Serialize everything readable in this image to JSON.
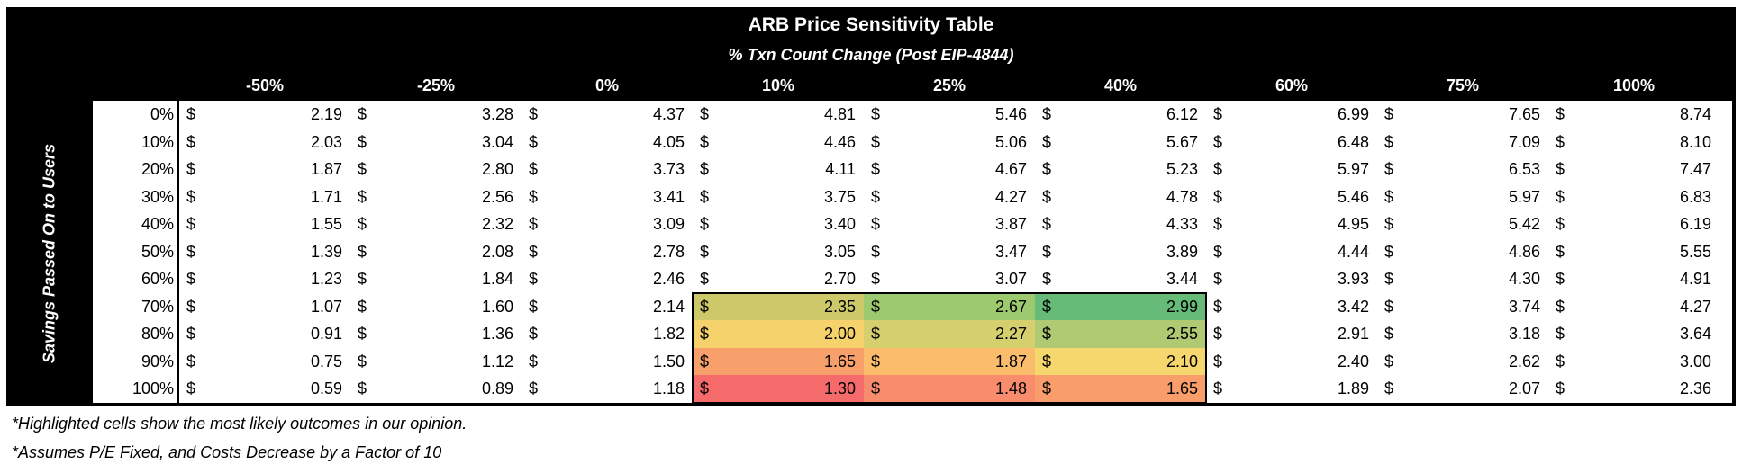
{
  "chart_data": {
    "type": "table",
    "title": "ARB Price Sensitivity Table",
    "subtitle": "% Txn Count Change (Post EIP-4844)",
    "ylabel": "Savings Passed On to Users",
    "columns": [
      "-50%",
      "-25%",
      "0%",
      "10%",
      "25%",
      "40%",
      "60%",
      "75%",
      "100%"
    ],
    "rows": [
      "0%",
      "10%",
      "20%",
      "30%",
      "40%",
      "50%",
      "60%",
      "70%",
      "80%",
      "90%",
      "100%"
    ],
    "currency_symbol": "$",
    "values": [
      [
        "2.19",
        "3.28",
        "4.37",
        "4.81",
        "5.46",
        "6.12",
        "6.99",
        "7.65",
        "8.74"
      ],
      [
        "2.03",
        "3.04",
        "4.05",
        "4.46",
        "5.06",
        "5.67",
        "6.48",
        "7.09",
        "8.10"
      ],
      [
        "1.87",
        "2.80",
        "3.73",
        "4.11",
        "4.67",
        "5.23",
        "5.97",
        "6.53",
        "7.47"
      ],
      [
        "1.71",
        "2.56",
        "3.41",
        "3.75",
        "4.27",
        "4.78",
        "5.46",
        "5.97",
        "6.83"
      ],
      [
        "1.55",
        "2.32",
        "3.09",
        "3.40",
        "3.87",
        "4.33",
        "4.95",
        "5.42",
        "6.19"
      ],
      [
        "1.39",
        "2.08",
        "2.78",
        "3.05",
        "3.47",
        "3.89",
        "4.44",
        "4.86",
        "5.55"
      ],
      [
        "1.23",
        "1.84",
        "2.46",
        "2.70",
        "3.07",
        "3.44",
        "3.93",
        "4.30",
        "4.91"
      ],
      [
        "1.07",
        "1.60",
        "2.14",
        "2.35",
        "2.67",
        "2.99",
        "3.42",
        "3.74",
        "4.27"
      ],
      [
        "0.91",
        "1.36",
        "1.82",
        "2.00",
        "2.27",
        "2.55",
        "2.91",
        "3.18",
        "3.64"
      ],
      [
        "0.75",
        "1.12",
        "1.50",
        "1.65",
        "1.87",
        "2.10",
        "2.40",
        "2.62",
        "3.00"
      ],
      [
        "0.59",
        "0.89",
        "1.18",
        "1.30",
        "1.48",
        "1.65",
        "1.89",
        "2.07",
        "2.36"
      ]
    ],
    "highlight": {
      "row_labels": [
        "70%",
        "80%",
        "90%",
        "100%"
      ],
      "column_labels": [
        "10%",
        "25%",
        "40%"
      ],
      "colors": [
        [
          "#cdc96a",
          "#9dc96f",
          "#66bb78"
        ],
        [
          "#f6d26c",
          "#d6cf6e",
          "#afca72"
        ],
        [
          "#f8a06b",
          "#fbbd6c",
          "#f5d76d"
        ],
        [
          "#f56a6a",
          "#f88c6d",
          "#f99d6b"
        ]
      ]
    }
  },
  "footnotes": [
    "*Highlighted cells show the most likely outcomes in our opinion.",
    "*Assumes P/E Fixed, and Costs Decrease by a Factor of 10"
  ]
}
